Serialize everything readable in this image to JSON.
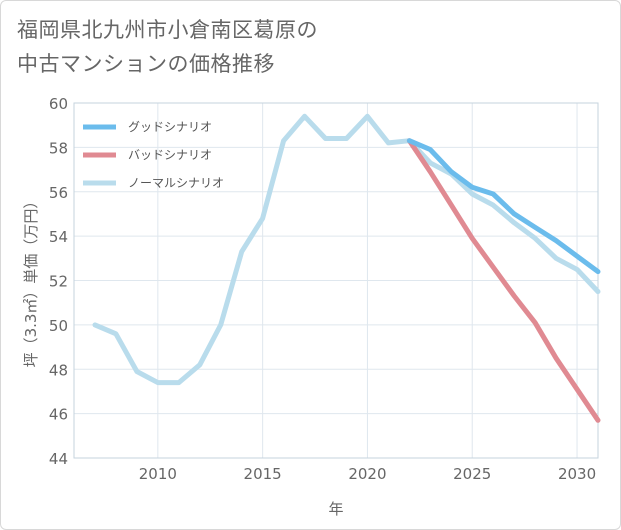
{
  "chart_data": {
    "type": "line",
    "title": "福岡県北九州市小倉南区葛原の\n中古マンションの価格推移",
    "xlabel": "年",
    "ylabel": "坪（3.3㎡）単価（万円）",
    "xlim": [
      2006,
      2031
    ],
    "ylim": [
      44,
      60
    ],
    "x_ticks": [
      2010,
      2015,
      2020,
      2025,
      2030
    ],
    "y_ticks": [
      44,
      46,
      48,
      50,
      52,
      54,
      56,
      58,
      60
    ],
    "grid": true,
    "legend_position": "top-left",
    "series": [
      {
        "name": "グッドシナリオ",
        "color": "#6bbcec",
        "x": [
          2022,
          2023,
          2024,
          2025,
          2026,
          2027,
          2028,
          2029,
          2030,
          2031
        ],
        "values": [
          58.3,
          57.9,
          56.9,
          56.2,
          55.9,
          55.0,
          54.4,
          53.8,
          53.1,
          52.4
        ]
      },
      {
        "name": "バッドシナリオ",
        "color": "#e08a92",
        "x": [
          2022,
          2023,
          2024,
          2025,
          2026,
          2027,
          2028,
          2029,
          2030,
          2031
        ],
        "values": [
          58.3,
          56.9,
          55.4,
          53.9,
          52.6,
          51.3,
          50.1,
          48.5,
          47.1,
          45.7
        ]
      },
      {
        "name": "ノーマルシナリオ",
        "color": "#b9dcec",
        "x": [
          2007,
          2008,
          2009,
          2010,
          2011,
          2012,
          2013,
          2014,
          2015,
          2016,
          2017,
          2018,
          2019,
          2020,
          2021,
          2022,
          2023,
          2024,
          2025,
          2026,
          2027,
          2028,
          2029,
          2030,
          2031
        ],
        "values": [
          50.0,
          49.6,
          47.9,
          47.4,
          47.4,
          48.2,
          50.0,
          53.3,
          54.8,
          58.3,
          59.4,
          58.4,
          58.4,
          59.4,
          58.2,
          58.3,
          57.3,
          56.8,
          55.9,
          55.4,
          54.6,
          53.9,
          53.0,
          52.5,
          51.5
        ]
      }
    ]
  }
}
